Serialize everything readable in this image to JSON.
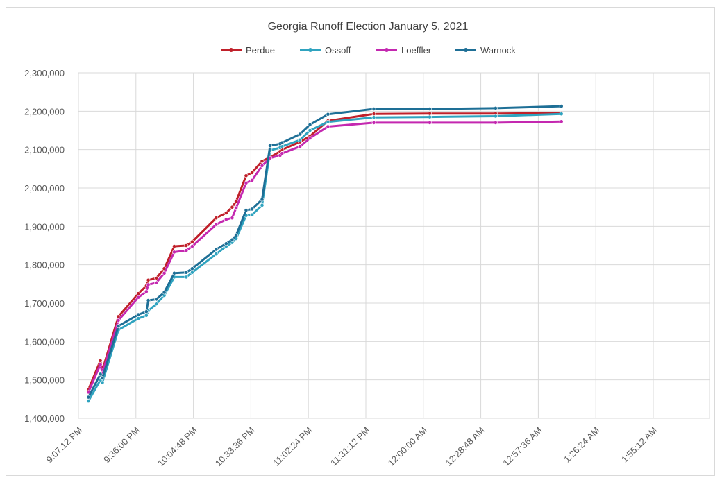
{
  "chart_data": {
    "type": "line",
    "title": "Georgia Runoff Election January 5, 2021",
    "xlabel": "",
    "ylabel": "",
    "ylim": [
      1400000,
      2300000
    ],
    "y_ticks": [
      "1,400,000",
      "1,500,000",
      "1,600,000",
      "1,700,000",
      "1,800,000",
      "1,900,000",
      "2,000,000",
      "2,100,000",
      "2,200,000",
      "2,300,000"
    ],
    "x_ticks": [
      "9:07:12 PM",
      "9:36:00 PM",
      "10:04:48 PM",
      "10:33:36 PM",
      "11:02:24 PM",
      "11:31:12 PM",
      "12:00:00 AM",
      "12:28:48 AM",
      "12:57:36 AM",
      "1:26:24 AM",
      "1:55:12 AM"
    ],
    "x_unit": "minutes after 9:07:12 PM",
    "grid": "horizontal and vertical",
    "legend_position": "top",
    "x": [
      5,
      11,
      12,
      20,
      30,
      34,
      35,
      39,
      43,
      48,
      54,
      57,
      69,
      74,
      77,
      79,
      84,
      87,
      92,
      96,
      101,
      102,
      111,
      116,
      125,
      148,
      176,
      209,
      242
    ],
    "series": [
      {
        "name": "Perdue",
        "color": "#c0202a",
        "values": [
          1475000,
          1550000,
          1525000,
          1665000,
          1725000,
          1745000,
          1760000,
          1765000,
          1790000,
          1848000,
          1850000,
          1860000,
          1922000,
          1935000,
          1950000,
          1965000,
          2032000,
          2040000,
          2070000,
          2080000,
          2095000,
          2100000,
          2120000,
          2135000,
          2175000,
          2193000,
          2194000,
          2194000,
          2195000
        ]
      },
      {
        "name": "Ossoff",
        "color": "#2fa3bf",
        "values": [
          1445000,
          1500000,
          1493000,
          1630000,
          1660000,
          1668000,
          1680000,
          1698000,
          1720000,
          1768000,
          1768000,
          1780000,
          1828000,
          1848000,
          1858000,
          1868000,
          1928000,
          1930000,
          1955000,
          2098000,
          2105000,
          2108000,
          2125000,
          2150000,
          2172000,
          2184000,
          2185000,
          2187000,
          2193000
        ]
      },
      {
        "name": "Loeffler",
        "color": "#c428b0",
        "values": [
          1468000,
          1540000,
          1518000,
          1655000,
          1715000,
          1730000,
          1748000,
          1753000,
          1778000,
          1833000,
          1837000,
          1848000,
          1905000,
          1918000,
          1922000,
          1948000,
          2013000,
          2020000,
          2058000,
          2078000,
          2085000,
          2090000,
          2108000,
          2130000,
          2160000,
          2170000,
          2170000,
          2170000,
          2173000
        ]
      },
      {
        "name": "Warnock",
        "color": "#1e6f96",
        "values": [
          1455000,
          1515000,
          1505000,
          1640000,
          1670000,
          1678000,
          1707000,
          1710000,
          1728000,
          1778000,
          1780000,
          1790000,
          1840000,
          1855000,
          1865000,
          1877000,
          1942000,
          1945000,
          1970000,
          2110000,
          2115000,
          2118000,
          2140000,
          2165000,
          2192000,
          2206000,
          2206000,
          2208000,
          2213000
        ]
      }
    ]
  }
}
